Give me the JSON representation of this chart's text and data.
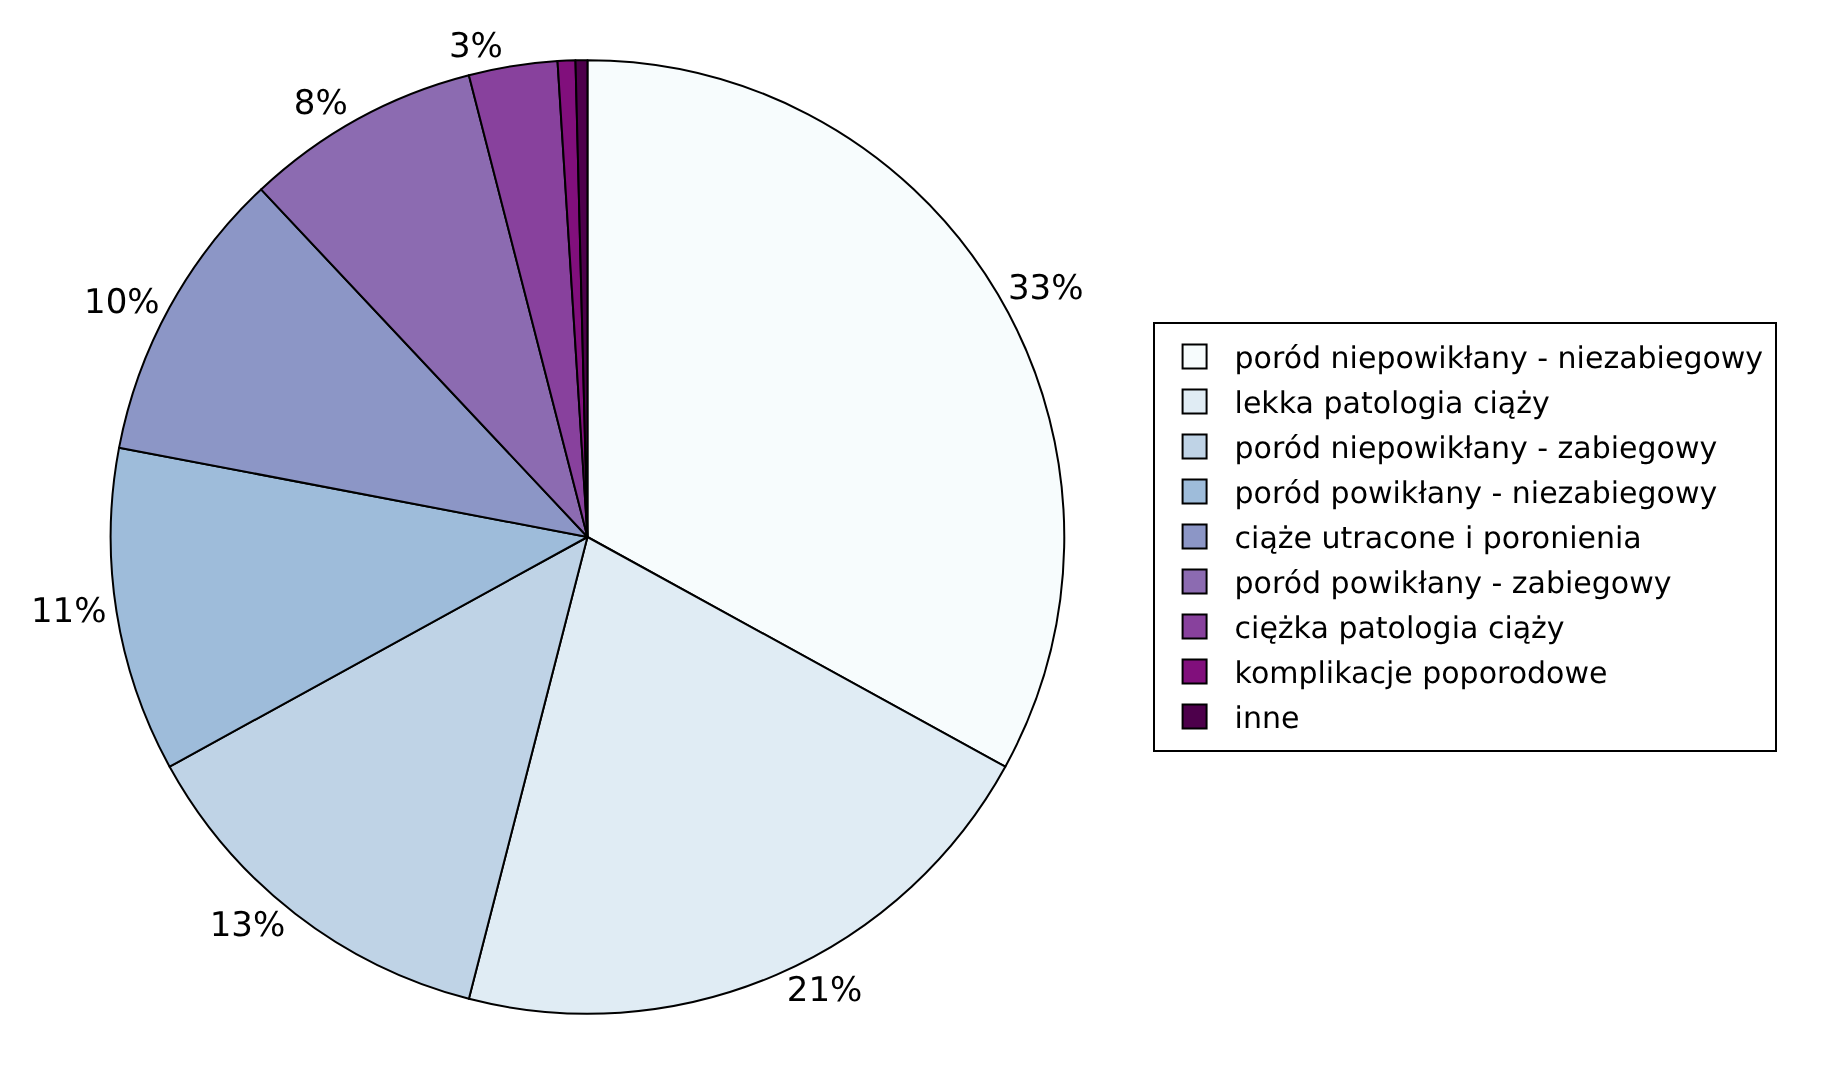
{
  "chart_data": {
    "type": "pie",
    "categories": [
      "poród niepowikłany - niezabiegowy",
      "lekka patologia ciąży",
      "poród niepowikłany - zabiegowy",
      "poród powikłany - niezabiegowy",
      "ciąże utracone i poronienia",
      "poród powikłany - zabiegowy",
      "ciężka patologia ciąży",
      "komplikacje poporodowe",
      "inne"
    ],
    "values": [
      33,
      21,
      13,
      11,
      10,
      8,
      3,
      0.6,
      0.4
    ],
    "value_labels": [
      "33%",
      "21%",
      "13%",
      "11%",
      "10%",
      "8%",
      "3%",
      null,
      null
    ],
    "colors": [
      "#f7fcfd",
      "#e0ecf4",
      "#bfd3e6",
      "#9ebcda",
      "#8c96c6",
      "#8c6bb1",
      "#88419d",
      "#810f7c",
      "#4d004b"
    ],
    "legend": "right"
  }
}
